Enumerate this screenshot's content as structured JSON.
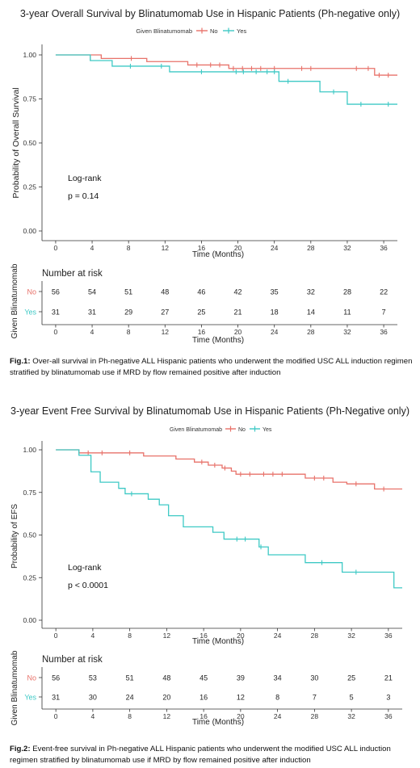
{
  "colors": {
    "no": "#e8726a",
    "yes": "#3ec9c5",
    "axis": "#333333",
    "text": "#222222"
  },
  "figures": [
    {
      "title": "3-year Overall Survival by Blinatumomab Use in Hispanic Patients (Ph-negative only)",
      "legend_title": "Given Blinatumomab",
      "legend_no": "No",
      "legend_yes": "Yes",
      "xlabel": "Time (Months)",
      "ylabel": "Probability of Overall Survival",
      "logrank_label": "Log-rank",
      "pvalue_label": "p = 0.14",
      "risk_title": "Number at risk",
      "risk_ylabel": "Given Blinatumomab",
      "risk_xlabel": "Time (Months)",
      "caption_bold": "Fig.1:",
      "caption_text": " Over-all survival in Ph-negative ALL Hispanic patients who underwent the modified USC ALL induction regimen stratified by blinatumomab use if MRD by flow remained positive after induction"
    },
    {
      "title": "3-year Event Free Survival by Blinatumomab Use in Hispanic Patients (Ph-Negative only)",
      "legend_title": "Given Blinatumomab",
      "legend_no": "No",
      "legend_yes": "Yes",
      "xlabel": "Time (Months)",
      "ylabel": "Probability of EFS",
      "logrank_label": "Log-rank",
      "pvalue_label": "p < 0.0001",
      "risk_title": "Number at risk",
      "risk_ylabel": "Given Blinatumomab",
      "risk_xlabel": "Time (Months)",
      "caption_bold": "Fig.2:",
      "caption_text": " Event-free survival in Ph-negative ALL Hispanic patients who underwent the modified USC ALL induction regimen stratified by blinatumomab use if MRD by flow remained positive after induction"
    }
  ],
  "chart_data": [
    {
      "type": "line",
      "step": true,
      "title": "3-year Overall Survival by Blinatumomab Use in Hispanic Patients (Ph-negative only)",
      "xlabel": "Time (Months)",
      "ylabel": "Probability of Overall Survival",
      "xlim": [
        -1.5,
        37.5
      ],
      "ylim": [
        0,
        1
      ],
      "x_ticks": [
        0,
        4,
        8,
        12,
        16,
        20,
        24,
        28,
        32,
        36
      ],
      "y_ticks": [
        "0.00",
        "0.25",
        "0.50",
        "0.75",
        "1.00"
      ],
      "grid": false,
      "legend_position": "top",
      "series": [
        {
          "name": "No",
          "color": "#e8726a",
          "steps": [
            [
              0,
              1.0
            ],
            [
              5,
              0.98
            ],
            [
              10,
              0.962
            ],
            [
              14.5,
              0.943
            ],
            [
              19,
              0.923
            ],
            [
              35,
              0.885
            ],
            [
              37.5,
              0.885
            ]
          ],
          "censors": [
            [
              3.8,
              0.98
            ],
            [
              8.3,
              0.98
            ],
            [
              15.5,
              0.943
            ],
            [
              17,
              0.943
            ],
            [
              18,
              0.943
            ],
            [
              19.5,
              0.923
            ],
            [
              20.5,
              0.923
            ],
            [
              21.5,
              0.923
            ],
            [
              22.5,
              0.923
            ],
            [
              24,
              0.923
            ],
            [
              27,
              0.923
            ],
            [
              28,
              0.923
            ],
            [
              33,
              0.923
            ],
            [
              34.3,
              0.923
            ],
            [
              35.5,
              0.885
            ],
            [
              36.5,
              0.885
            ]
          ]
        },
        {
          "name": "Yes",
          "color": "#3ec9c5",
          "steps": [
            [
              0,
              1.0
            ],
            [
              3.8,
              0.968
            ],
            [
              6.2,
              0.936
            ],
            [
              12.5,
              0.904
            ],
            [
              24.5,
              0.85
            ],
            [
              29,
              0.79
            ],
            [
              32,
              0.72
            ],
            [
              37.5,
              0.72
            ]
          ],
          "censors": [
            [
              8.2,
              0.936
            ],
            [
              11.6,
              0.936
            ],
            [
              16,
              0.904
            ],
            [
              19.8,
              0.904
            ],
            [
              20.6,
              0.904
            ],
            [
              22,
              0.904
            ],
            [
              23.2,
              0.904
            ],
            [
              24,
              0.904
            ],
            [
              25.5,
              0.85
            ],
            [
              30.5,
              0.79
            ],
            [
              33.5,
              0.72
            ],
            [
              36.5,
              0.72
            ]
          ]
        }
      ],
      "annotations": [
        "Log-rank",
        "p = 0.14"
      ],
      "risk_table": {
        "times": [
          0,
          4,
          8,
          12,
          16,
          20,
          24,
          28,
          32,
          36
        ],
        "No": [
          56,
          54,
          51,
          48,
          46,
          42,
          35,
          32,
          28,
          22
        ],
        "Yes": [
          31,
          31,
          29,
          27,
          25,
          21,
          18,
          14,
          11,
          7
        ]
      }
    },
    {
      "type": "line",
      "step": true,
      "title": "3-year Event Free Survival by Blinatumomab Use in Hispanic Patients (Ph-Negative only)",
      "xlabel": "Time (Months)",
      "ylabel": "Probability of EFS",
      "xlim": [
        -1.5,
        37.5
      ],
      "ylim": [
        0,
        1
      ],
      "x_ticks": [
        0,
        4,
        8,
        12,
        16,
        20,
        24,
        28,
        32,
        36
      ],
      "y_ticks": [
        "0.00",
        "0.25",
        "0.50",
        "0.75",
        "1.00"
      ],
      "grid": false,
      "legend_position": "top",
      "series": [
        {
          "name": "No",
          "color": "#e8726a",
          "steps": [
            [
              0,
              1.0
            ],
            [
              2.5,
              0.982
            ],
            [
              9.5,
              0.964
            ],
            [
              13,
              0.946
            ],
            [
              15,
              0.928
            ],
            [
              16.5,
              0.91
            ],
            [
              18,
              0.893
            ],
            [
              19,
              0.875
            ],
            [
              19.5,
              0.857
            ],
            [
              27,
              0.834
            ],
            [
              30,
              0.81
            ],
            [
              31.5,
              0.8
            ],
            [
              34.5,
              0.77
            ],
            [
              37.5,
              0.77
            ]
          ],
          "censors": [
            [
              3.5,
              0.982
            ],
            [
              5,
              0.982
            ],
            [
              8,
              0.982
            ],
            [
              15.8,
              0.928
            ],
            [
              17.2,
              0.91
            ],
            [
              18.3,
              0.893
            ],
            [
              20,
              0.857
            ],
            [
              21,
              0.857
            ],
            [
              22.5,
              0.857
            ],
            [
              23.5,
              0.857
            ],
            [
              24.5,
              0.857
            ],
            [
              28,
              0.834
            ],
            [
              29,
              0.834
            ],
            [
              32.5,
              0.8
            ],
            [
              35.5,
              0.77
            ]
          ]
        },
        {
          "name": "Yes",
          "color": "#3ec9c5",
          "steps": [
            [
              0,
              1.0
            ],
            [
              2.5,
              0.968
            ],
            [
              3.8,
              0.871
            ],
            [
              4.8,
              0.81
            ],
            [
              6.8,
              0.774
            ],
            [
              7.5,
              0.742
            ],
            [
              10,
              0.71
            ],
            [
              11.2,
              0.677
            ],
            [
              12.2,
              0.613
            ],
            [
              13.8,
              0.548
            ],
            [
              17,
              0.516
            ],
            [
              18.2,
              0.476
            ],
            [
              22,
              0.43
            ],
            [
              23,
              0.384
            ],
            [
              27,
              0.338
            ],
            [
              31,
              0.282
            ],
            [
              36.6,
              0.19
            ],
            [
              37.5,
              0.19
            ]
          ],
          "censors": [
            [
              8.2,
              0.742
            ],
            [
              19.6,
              0.476
            ],
            [
              20.5,
              0.476
            ],
            [
              22.2,
              0.43
            ],
            [
              28.8,
              0.338
            ],
            [
              32.5,
              0.282
            ]
          ]
        }
      ],
      "annotations": [
        "Log-rank",
        "p < 0.0001"
      ],
      "risk_table": {
        "times": [
          0,
          4,
          8,
          12,
          16,
          20,
          24,
          28,
          32,
          36
        ],
        "No": [
          56,
          53,
          51,
          48,
          45,
          39,
          34,
          30,
          25,
          21
        ],
        "Yes": [
          31,
          30,
          24,
          20,
          16,
          12,
          8,
          7,
          5,
          3
        ]
      }
    }
  ]
}
